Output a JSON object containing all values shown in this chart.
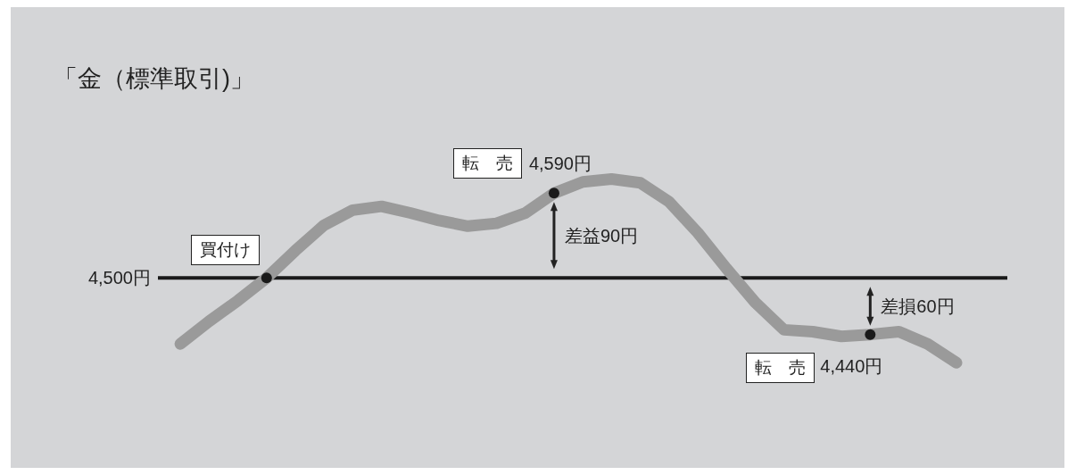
{
  "chart_data": {
    "type": "line",
    "title": "「金（標準取引)」",
    "categories": [
      null,
      null,
      null,
      null,
      null,
      null,
      null,
      null,
      null,
      null,
      null,
      null,
      null,
      null,
      null,
      null,
      null,
      null,
      null,
      null,
      null,
      null,
      null,
      null,
      null,
      null,
      null,
      null
    ],
    "series": [
      {
        "type": "line",
        "color": "#9a9a9a",
        "values": [
          4430,
          4454,
          4476,
          4500,
          4529,
          4556,
          4572,
          4576,
          4569,
          4561,
          4555,
          4558,
          4569,
          4590,
          4602,
          4605,
          4601,
          4581,
          4548,
          4510,
          4474,
          4445,
          4443,
          4438,
          4440,
          4443,
          4430,
          4410
        ],
        "value_labels": [
          null,
          null,
          null,
          null,
          null,
          null,
          null,
          null,
          null,
          null,
          null,
          null,
          null,
          "4,590円",
          null,
          null,
          null,
          null,
          null,
          null,
          null,
          null,
          null,
          null,
          "4,440円",
          null,
          null,
          null
        ]
      }
    ],
    "tick_labels": false,
    "ref_lines": [
      {
        "axis": "y",
        "value": 4500,
        "label": "4,500円",
        "color": "#1a1a1a"
      }
    ],
    "annotations": [
      "買付け",
      "転　売",
      "転　売",
      "差益90円",
      "差損60円"
    ]
  }
}
